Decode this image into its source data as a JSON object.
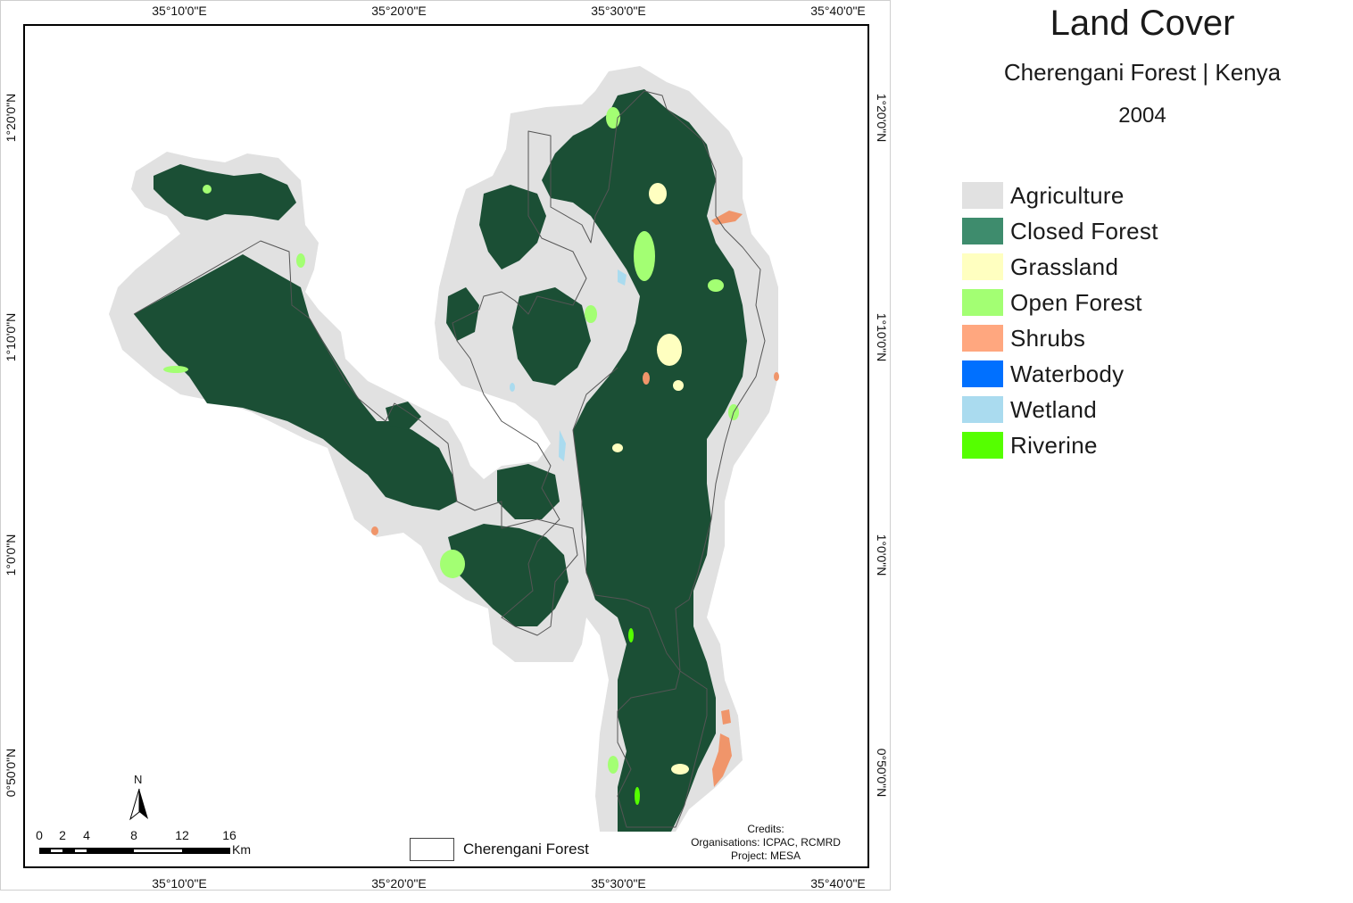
{
  "map": {
    "title": "Land Cover",
    "subtitle": "Cherengani Forest | Kenya",
    "year": "2004",
    "longitude_ticks": [
      "35°10'0\"E",
      "35°20'0\"E",
      "35°30'0\"E",
      "35°40'0\"E"
    ],
    "latitude_ticks": [
      "1°20'0\"N",
      "1°10'0\"N",
      "1°0'0\"N",
      "0°50'0\"N"
    ],
    "legend": [
      {
        "label": "Agriculture",
        "color": "#e1e1e1"
      },
      {
        "label": "Closed Forest",
        "color": "#3e8c6d"
      },
      {
        "label": "Grassland",
        "color": "#ffffc0"
      },
      {
        "label": "Open Forest",
        "color": "#a3ff73"
      },
      {
        "label": "Shrubs",
        "color": "#ffa77f"
      },
      {
        "label": "Waterbody",
        "color": "#0070ff"
      },
      {
        "label": "Wetland",
        "color": "#aadbef"
      },
      {
        "label": "Riverine",
        "color": "#55ff00"
      }
    ],
    "map_colors": {
      "forest_fill": "#1b4f35",
      "buffer_fill": "#e1e1e1",
      "open_forest": "#a3ff73",
      "grassland": "#ffffc0",
      "shrubs": "#f0956a",
      "wetland": "#aadbef",
      "boundary": "#555555"
    },
    "scale_bar": {
      "labels": [
        "0",
        "2",
        "4",
        "8",
        "12",
        "16"
      ],
      "unit": "Km"
    },
    "north_arrow": {
      "label": "N"
    },
    "boundary_legend": {
      "label": "Cherengani Forest"
    },
    "credits": {
      "heading": "Credits:",
      "organisations": "Organisations: ICPAC, RCMRD",
      "project": "Project: MESA"
    }
  }
}
